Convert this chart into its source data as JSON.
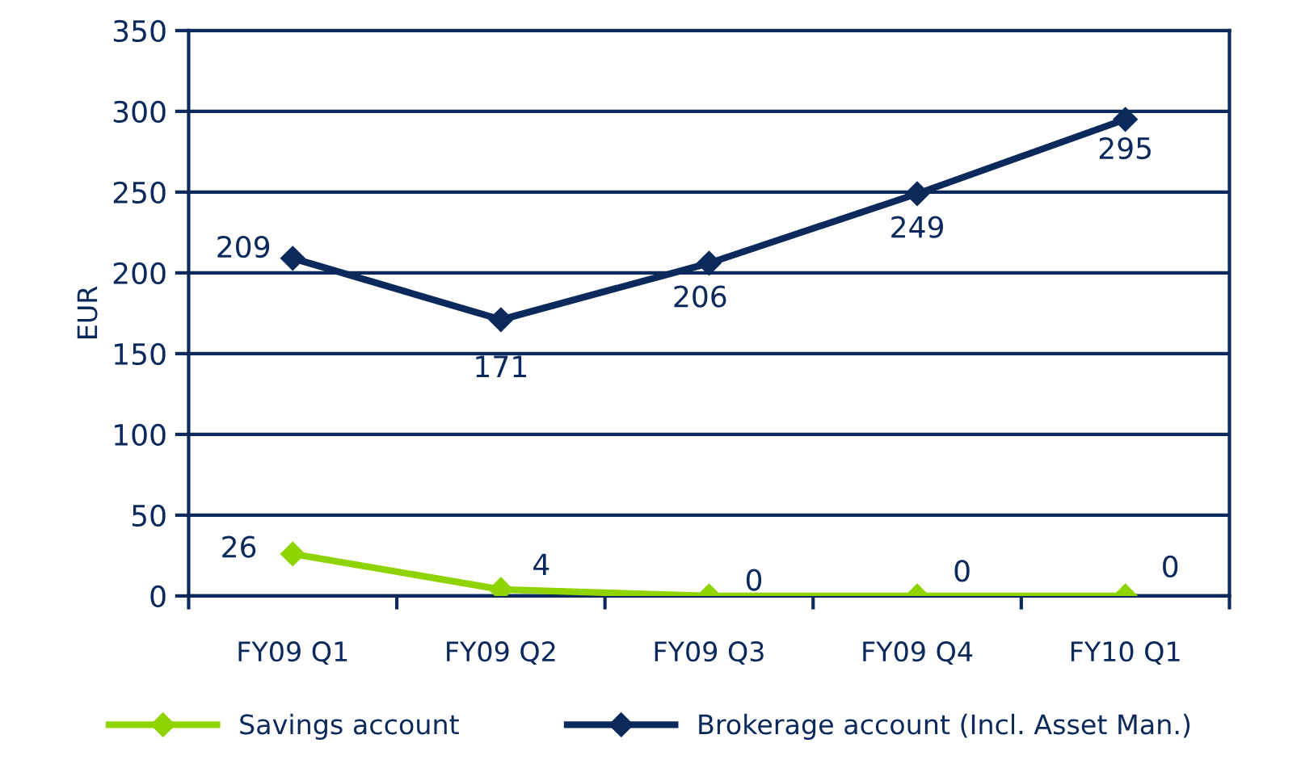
{
  "chart_data": {
    "type": "line",
    "ylabel": "EUR",
    "categories": [
      "FY09 Q1",
      "FY09 Q2",
      "FY09 Q3",
      "FY09 Q4",
      "FY10 Q1"
    ],
    "series": [
      {
        "name": "Savings account",
        "color": "#8fd400",
        "values": [
          26,
          4,
          0,
          0,
          0
        ],
        "value_labels": [
          "26",
          "4",
          "0",
          "0",
          "0"
        ]
      },
      {
        "name": "Brokerage account (Incl. Asset Man.)",
        "color": "#0b2a5b",
        "values": [
          209,
          171,
          206,
          249,
          295
        ],
        "value_labels": [
          "209",
          "171",
          "206",
          "249",
          "295"
        ]
      }
    ],
    "ylim": [
      0,
      350
    ],
    "yticks": [
      0,
      50,
      100,
      150,
      200,
      250,
      300,
      350
    ],
    "grid": "y",
    "legend": "bottom",
    "marker": "diamond",
    "line_style": "solid"
  }
}
